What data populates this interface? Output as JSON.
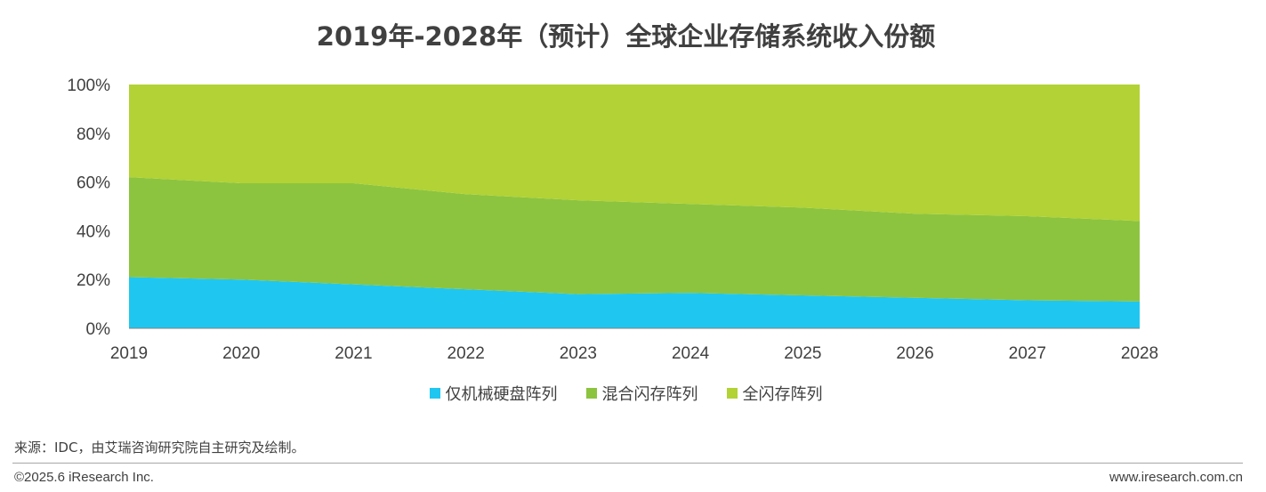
{
  "chart_data": {
    "type": "area",
    "stacked": true,
    "title": "2019年-2028年（预计）全球企业存储系统收入份额",
    "x": [
      "2019",
      "2020",
      "2021",
      "2022",
      "2023",
      "2024",
      "2025",
      "2026",
      "2027",
      "2028"
    ],
    "y_ticks": [
      "0%",
      "20%",
      "40%",
      "60%",
      "80%",
      "100%"
    ],
    "ylim": [
      0,
      100
    ],
    "grid": false,
    "legend_position": "bottom",
    "series": [
      {
        "name": "仅机械硬盘阵列",
        "color": "#1fc7f0",
        "values": [
          21,
          20,
          18,
          16,
          14,
          14.5,
          13.5,
          12.5,
          11.5,
          11
        ]
      },
      {
        "name": "混合闪存阵列",
        "color": "#8cc43f",
        "values": [
          41,
          39.5,
          41.5,
          39,
          38.5,
          36.5,
          36,
          34.5,
          34.5,
          33
        ]
      },
      {
        "name": "全闪存阵列",
        "color": "#b2d235",
        "values": [
          38,
          40.5,
          40.5,
          45,
          47.5,
          49,
          50.5,
          53,
          54,
          56
        ]
      }
    ]
  },
  "footer": {
    "source": "来源：IDC，由艾瑞咨询研究院自主研究及绘制。",
    "copyright": "©2025.6 iResearch Inc.",
    "website": "www.iresearch.com.cn"
  }
}
